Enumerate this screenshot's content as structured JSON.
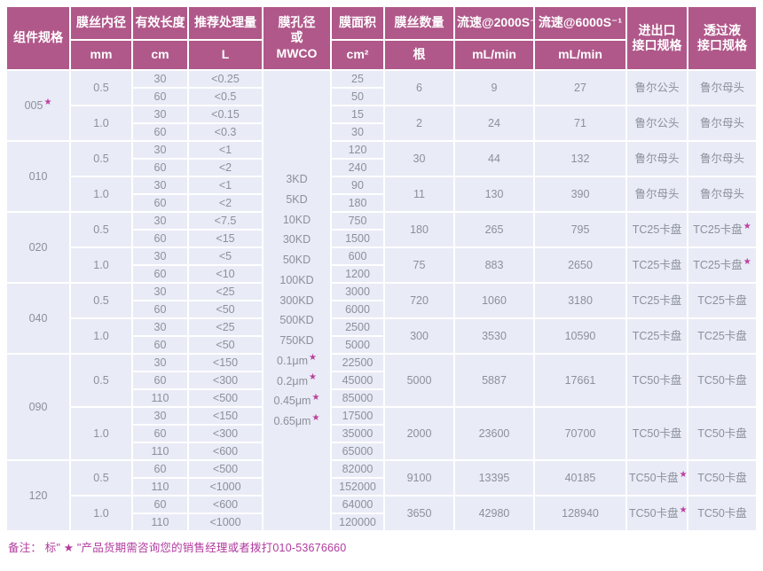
{
  "colors": {
    "header_bg": "#b0588a",
    "header_text": "#ffffff",
    "cell_bg": "#e9ebf6",
    "cell_text": "#8b919c",
    "star": "#bb3f9e",
    "footnote_text": "#b13a9e"
  },
  "table": {
    "header": {
      "spec": "组件规格",
      "inner_diameter": "膜丝内径",
      "inner_diameter_unit": "mm",
      "effective_length": "有效长度",
      "effective_length_unit": "cm",
      "recommended_volume": "推荐处理量",
      "recommended_volume_unit": "L",
      "pore_line1": "膜孔径",
      "pore_line2": "或",
      "pore_line3": "MWCO",
      "membrane_area": "膜面积",
      "membrane_area_unit": "cm²",
      "fiber_count": "膜丝数量",
      "fiber_count_unit": "根",
      "flow_2000": "流速@2000S⁻¹",
      "flow_2000_unit": "mL/min",
      "flow_6000": "流速@6000S⁻¹",
      "flow_6000_unit": "mL/min",
      "inlet_line1": "进出口",
      "inlet_line2": "接口规格",
      "permeate_line1": "透过液",
      "permeate_line2": "接口规格"
    },
    "mwco_list": [
      "3KD",
      "5KD",
      "10KD",
      "30KD",
      "50KD",
      "100KD",
      "300KD",
      "500KD",
      "750KD",
      "0.1μm★",
      "0.2μm★",
      "0.45μm★",
      "0.65μm★"
    ],
    "groups": [
      {
        "spec": "005★",
        "subgroups": [
          {
            "diameter": "0.5",
            "rows": [
              {
                "length": "30",
                "volume": "<0.25",
                "area": "25"
              },
              {
                "length": "60",
                "volume": "<0.5",
                "area": "50"
              }
            ],
            "fibers": "6",
            "flow2000": "9",
            "flow6000": "27",
            "inlet_outlet": "鲁尔公头",
            "permeate": "鲁尔母头"
          },
          {
            "diameter": "1.0",
            "rows": [
              {
                "length": "30",
                "volume": "<0.15",
                "area": "15"
              },
              {
                "length": "60",
                "volume": "<0.3",
                "area": "30"
              }
            ],
            "fibers": "2",
            "flow2000": "24",
            "flow6000": "71",
            "inlet_outlet": "鲁尔公头",
            "permeate": "鲁尔母头"
          }
        ]
      },
      {
        "spec": "010",
        "subgroups": [
          {
            "diameter": "0.5",
            "rows": [
              {
                "length": "30",
                "volume": "<1",
                "area": "120"
              },
              {
                "length": "60",
                "volume": "<2",
                "area": "240"
              }
            ],
            "fibers": "30",
            "flow2000": "44",
            "flow6000": "132",
            "inlet_outlet": "鲁尔母头",
            "permeate": "鲁尔母头"
          },
          {
            "diameter": "1.0",
            "rows": [
              {
                "length": "30",
                "volume": "<1",
                "area": "90"
              },
              {
                "length": "60",
                "volume": "<2",
                "area": "180"
              }
            ],
            "fibers": "11",
            "flow2000": "130",
            "flow6000": "390",
            "inlet_outlet": "鲁尔母头",
            "permeate": "鲁尔母头"
          }
        ]
      },
      {
        "spec": "020",
        "subgroups": [
          {
            "diameter": "0.5",
            "rows": [
              {
                "length": "30",
                "volume": "<7.5",
                "area": "750"
              },
              {
                "length": "60",
                "volume": "<15",
                "area": "1500"
              }
            ],
            "fibers": "180",
            "flow2000": "265",
            "flow6000": "795",
            "inlet_outlet": "TC25卡盘",
            "permeate": "TC25卡盘★"
          },
          {
            "diameter": "1.0",
            "rows": [
              {
                "length": "30",
                "volume": "<5",
                "area": "600"
              },
              {
                "length": "60",
                "volume": "<10",
                "area": "1200"
              }
            ],
            "fibers": "75",
            "flow2000": "883",
            "flow6000": "2650",
            "inlet_outlet": "TC25卡盘",
            "permeate": "TC25卡盘★"
          }
        ]
      },
      {
        "spec": "040",
        "subgroups": [
          {
            "diameter": "0.5",
            "rows": [
              {
                "length": "30",
                "volume": "<25",
                "area": "3000"
              },
              {
                "length": "60",
                "volume": "<50",
                "area": "6000"
              }
            ],
            "fibers": "720",
            "flow2000": "1060",
            "flow6000": "3180",
            "inlet_outlet": "TC25卡盘",
            "permeate": "TC25卡盘"
          },
          {
            "diameter": "1.0",
            "rows": [
              {
                "length": "30",
                "volume": "<25",
                "area": "2500"
              },
              {
                "length": "60",
                "volume": "<50",
                "area": "5000"
              }
            ],
            "fibers": "300",
            "flow2000": "3530",
            "flow6000": "10590",
            "inlet_outlet": "TC25卡盘",
            "permeate": "TC25卡盘"
          }
        ]
      },
      {
        "spec": "090",
        "subgroups": [
          {
            "diameter": "0.5",
            "rows": [
              {
                "length": "30",
                "volume": "<150",
                "area": "22500"
              },
              {
                "length": "60",
                "volume": "<300",
                "area": "45000"
              },
              {
                "length": "110",
                "volume": "<500",
                "area": "85000"
              }
            ],
            "fibers": "5000",
            "flow2000": "5887",
            "flow6000": "17661",
            "inlet_outlet": "TC50卡盘",
            "permeate": "TC50卡盘"
          },
          {
            "diameter": "1.0",
            "rows": [
              {
                "length": "30",
                "volume": "<150",
                "area": "17500"
              },
              {
                "length": "60",
                "volume": "<300",
                "area": "35000"
              },
              {
                "length": "110",
                "volume": "<600",
                "area": "65000"
              }
            ],
            "fibers": "2000",
            "flow2000": "23600",
            "flow6000": "70700",
            "inlet_outlet": "TC50卡盘",
            "permeate": "TC50卡盘"
          }
        ]
      },
      {
        "spec": "120",
        "subgroups": [
          {
            "diameter": "0.5",
            "rows": [
              {
                "length": "60",
                "volume": "<500",
                "area": "82000"
              },
              {
                "length": "110",
                "volume": "<1000",
                "area": "152000"
              }
            ],
            "fibers": "9100",
            "flow2000": "13395",
            "flow6000": "40185",
            "inlet_outlet": "TC50卡盘★",
            "permeate": "TC50卡盘"
          },
          {
            "diameter": "1.0",
            "rows": [
              {
                "length": "60",
                "volume": "<600",
                "area": "64000"
              },
              {
                "length": "110",
                "volume": "<1000",
                "area": "120000"
              }
            ],
            "fibers": "3650",
            "flow2000": "42980",
            "flow6000": "128940",
            "inlet_outlet": "TC50卡盘★",
            "permeate": "TC50卡盘"
          }
        ]
      }
    ]
  },
  "footnote": {
    "text": "备注：  标\" ★ \"产品货期需咨询您的销售经理或者拨打010-53676660"
  }
}
